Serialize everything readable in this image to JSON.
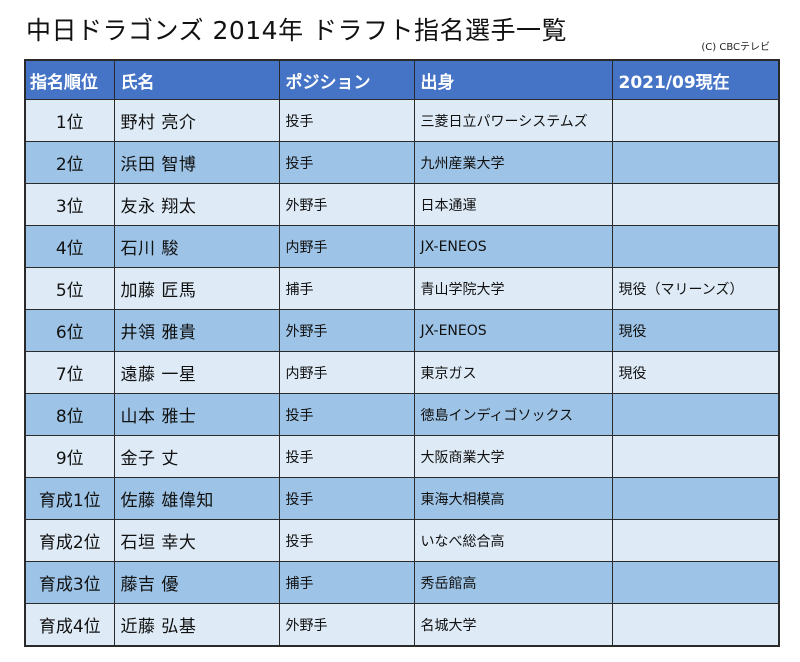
{
  "title": "中日ドラゴンズ 2014年 ドラフト指名選手一覧",
  "credit": "(C) CBCテレビ",
  "table": {
    "headers": [
      "指名順位",
      "氏名",
      "ポジション",
      "出身",
      "2021/09現在"
    ],
    "rows": [
      {
        "rank": "1位",
        "name": "野村 亮介",
        "position": "投手",
        "origin": "三菱日立パワーシステムズ",
        "status": ""
      },
      {
        "rank": "2位",
        "name": "浜田 智博",
        "position": "投手",
        "origin": "九州産業大学",
        "status": ""
      },
      {
        "rank": "3位",
        "name": "友永 翔太",
        "position": "外野手",
        "origin": "日本通運",
        "status": ""
      },
      {
        "rank": "4位",
        "name": "石川 駿",
        "position": "内野手",
        "origin": "JX-ENEOS",
        "status": ""
      },
      {
        "rank": "5位",
        "name": "加藤 匠馬",
        "position": "捕手",
        "origin": "青山学院大学",
        "status": "現役（マリーンズ）"
      },
      {
        "rank": "6位",
        "name": "井領 雅貴",
        "position": "外野手",
        "origin": "JX-ENEOS",
        "status": "現役"
      },
      {
        "rank": "7位",
        "name": "遠藤 一星",
        "position": "内野手",
        "origin": "東京ガス",
        "status": "現役"
      },
      {
        "rank": "8位",
        "name": "山本 雅士",
        "position": "投手",
        "origin": "徳島インディゴソックス",
        "status": ""
      },
      {
        "rank": "9位",
        "name": "金子 丈",
        "position": "投手",
        "origin": "大阪商業大学",
        "status": ""
      },
      {
        "rank": "育成1位",
        "name": "佐藤 雄偉知",
        "position": "投手",
        "origin": "東海大相模高",
        "status": ""
      },
      {
        "rank": "育成2位",
        "name": "石垣 幸大",
        "position": "投手",
        "origin": "いなべ総合高",
        "status": ""
      },
      {
        "rank": "育成3位",
        "name": "藤吉 優",
        "position": "捕手",
        "origin": "秀岳館高",
        "status": ""
      },
      {
        "rank": "育成4位",
        "name": "近藤 弘基",
        "position": "外野手",
        "origin": "名城大学",
        "status": ""
      }
    ]
  },
  "colors": {
    "header_bg": "#4574c6",
    "row_light": "#deebf7",
    "row_dark": "#9dc3e6",
    "border": "#2a2a2a"
  }
}
